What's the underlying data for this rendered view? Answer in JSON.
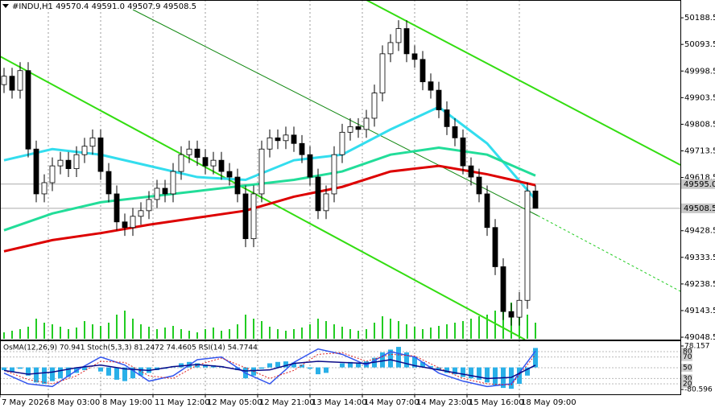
{
  "chart_data": [
    {
      "type": "candlestick",
      "title": "#INDU,H1  49570.4 49591.0 49507.9 49508.5",
      "xlim": [
        -0.5,
        84
      ],
      "ylim": [
        49040,
        50252
      ],
      "yticks": [
        50188.5,
        50093.5,
        49998.5,
        49903.5,
        49808.5,
        49713.5,
        49618.5,
        49428.5,
        49333.5,
        49238.5,
        49143.5,
        49048.5
      ],
      "price_lines": [
        {
          "value": 49595,
          "label": "49595.0"
        },
        49508.5
      ],
      "xticks": [
        {
          "value": -0.5,
          "label": "7 May 2026"
        },
        {
          "value": 5.5,
          "label": "8 May 03:00"
        },
        {
          "value": 12,
          "label": "8 May 19:00"
        },
        {
          "value": 18.5,
          "label": "11 May 12:00"
        },
        {
          "value": 25,
          "label": "12 May 05:00"
        },
        {
          "value": 31.5,
          "label": "12 May 21:00"
        },
        {
          "value": 38,
          "label": "13 May 14:00"
        },
        {
          "value": 44.5,
          "label": "14 May 07:00"
        },
        {
          "value": 51,
          "label": "14 May 23:00"
        },
        {
          "value": 57.5,
          "label": "15 May 16:00"
        },
        {
          "value": 64,
          "label": "18 May 09:00"
        }
      ],
      "grid": "x",
      "up_color": "#ffffff",
      "down_color": "#000000",
      "open": [
        49950,
        49980,
        49930,
        50000,
        49720,
        49560,
        49600,
        49660,
        49680,
        49650,
        49700,
        49730,
        49760,
        49640,
        49560,
        49460,
        49440,
        49480,
        49500,
        49540,
        49580,
        49560,
        49640,
        49700,
        49720,
        49690,
        49660,
        49680,
        49640,
        49620,
        49560,
        49400,
        49560,
        49720,
        49760,
        49750,
        49770,
        49740,
        49700,
        49620,
        49500,
        49560,
        49700,
        49780,
        49800,
        49790,
        49830,
        49920,
        50060,
        50100,
        50150,
        50060,
        50040,
        49960,
        49930,
        49860,
        49800,
        49760,
        49660,
        49620,
        49560,
        49440,
        49300,
        49140,
        49120,
        49180,
        49570.4
      ],
      "high": [
        50010,
        50010,
        50030,
        50030,
        49750,
        49630,
        49690,
        49710,
        49710,
        49730,
        49760,
        49790,
        49790,
        49670,
        49590,
        49490,
        49510,
        49530,
        49570,
        49610,
        49610,
        49670,
        49730,
        49750,
        49750,
        49720,
        49710,
        49710,
        49670,
        49650,
        49590,
        49590,
        49750,
        49790,
        49790,
        49800,
        49800,
        49770,
        49730,
        49650,
        49590,
        49730,
        49810,
        49830,
        49830,
        49860,
        49950,
        50090,
        50130,
        50180,
        50180,
        50090,
        50070,
        49990,
        49960,
        49890,
        49830,
        49790,
        49690,
        49650,
        49590,
        49470,
        49330,
        49170,
        49210,
        49600,
        49591.0
      ],
      "low": [
        49920,
        49900,
        49900,
        49690,
        49530,
        49530,
        49570,
        49630,
        49620,
        49620,
        49670,
        49700,
        49610,
        49530,
        49430,
        49410,
        49410,
        49450,
        49470,
        49510,
        49530,
        49530,
        49610,
        49670,
        49660,
        49630,
        49630,
        49610,
        49590,
        49530,
        49370,
        49370,
        49530,
        49690,
        49720,
        49720,
        49710,
        49670,
        49590,
        49470,
        49470,
        49530,
        49670,
        49750,
        49760,
        49760,
        49800,
        49890,
        50030,
        50070,
        50030,
        50010,
        49930,
        49900,
        49830,
        49770,
        49730,
        49630,
        49590,
        49530,
        49410,
        49270,
        49110,
        49090,
        49090,
        49150,
        49507.9
      ],
      "close": [
        49980,
        49930,
        50000,
        49720,
        49560,
        49600,
        49660,
        49680,
        49650,
        49700,
        49730,
        49760,
        49640,
        49560,
        49460,
        49440,
        49480,
        49500,
        49540,
        49580,
        49560,
        49640,
        49700,
        49720,
        49690,
        49660,
        49680,
        49640,
        49620,
        49560,
        49400,
        49560,
        49720,
        49760,
        49750,
        49770,
        49740,
        49700,
        49620,
        49500,
        49560,
        49700,
        49780,
        49800,
        49790,
        49830,
        49920,
        50060,
        50100,
        50150,
        50060,
        50040,
        49960,
        49930,
        49860,
        49800,
        49760,
        49660,
        49620,
        49560,
        49440,
        49300,
        49140,
        49120,
        49180,
        49570.4,
        49508.5
      ],
      "volumes": [
        8,
        10,
        12,
        15,
        25,
        20,
        18,
        15,
        12,
        14,
        22,
        18,
        16,
        20,
        30,
        35,
        25,
        18,
        15,
        12,
        14,
        16,
        12,
        10,
        8,
        12,
        14,
        10,
        12,
        18,
        30,
        25,
        22,
        15,
        12,
        10,
        12,
        14,
        18,
        25,
        22,
        18,
        15,
        12,
        10,
        12,
        20,
        28,
        25,
        22,
        18,
        15,
        12,
        14,
        16,
        18,
        20,
        22,
        25,
        28,
        30,
        35,
        40,
        45,
        38,
        30,
        20
      ],
      "volume_color": "#22cc22",
      "overlays": [
        {
          "color": "#33ddee",
          "x": [
            0,
            6,
            12,
            18,
            24,
            30,
            36,
            42,
            48,
            54,
            60,
            66
          ],
          "values": [
            49680,
            49720,
            49700,
            49660,
            49620,
            49610,
            49680,
            49700,
            49790,
            49870,
            49740,
            49540
          ]
        },
        {
          "color": "#22dd99",
          "x": [
            0,
            6,
            12,
            18,
            24,
            30,
            36,
            42,
            48,
            54,
            60,
            66
          ],
          "values": [
            49430,
            49490,
            49530,
            49550,
            49570,
            49590,
            49610,
            49640,
            49700,
            49725,
            49700,
            49625
          ]
        },
        {
          "color": "#dd0000",
          "x": [
            0,
            6,
            12,
            18,
            24,
            30,
            36,
            42,
            48,
            54,
            60,
            66
          ],
          "values": [
            49355,
            49395,
            49420,
            49450,
            49475,
            49500,
            49550,
            49585,
            49640,
            49660,
            49630,
            49591
          ]
        }
      ]
    },
    {
      "type": "oscillator",
      "title": "OsMA(12,26,9) 70.941 Stoch(5,3,3) 81.2472 74.4605 RSI(14) 54.7744",
      "xlim": [
        -0.5,
        84
      ],
      "ylim": [
        -98.2,
        98.7
      ],
      "yticks": [
        78.157,
        -80.596
      ],
      "y2lim": [
        0.5,
        101
      ],
      "y2ticks": [
        80,
        70,
        50,
        30,
        20
      ],
      "histogram": {
        "color": "#2ab0e8",
        "values": [
          -10,
          -15,
          -5,
          -30,
          -55,
          -60,
          -50,
          -40,
          -35,
          -20,
          -10,
          0,
          -15,
          -30,
          -45,
          -50,
          -40,
          -30,
          -20,
          -10,
          -5,
          5,
          15,
          20,
          15,
          10,
          8,
          5,
          0,
          -10,
          -40,
          -30,
          -5,
          15,
          20,
          22,
          18,
          10,
          -5,
          -25,
          -20,
          0,
          15,
          20,
          18,
          22,
          35,
          55,
          65,
          75,
          55,
          40,
          20,
          5,
          -10,
          -20,
          -25,
          -35,
          -40,
          -45,
          -55,
          -65,
          -75,
          -78,
          -60,
          -30,
          70.941
        ]
      },
      "lines": [
        {
          "color": "#3355ee",
          "axis": "y2",
          "x": [
            0,
            3,
            6,
            9,
            12,
            15,
            18,
            21,
            24,
            27,
            30,
            33,
            36,
            39,
            42,
            45,
            48,
            51,
            54,
            57,
            60,
            63,
            66
          ],
          "values": [
            40,
            20,
            15,
            45,
            70,
            55,
            25,
            35,
            65,
            70,
            40,
            20,
            60,
            85,
            75,
            55,
            80,
            70,
            40,
            25,
            15,
            20,
            81.2472
          ]
        },
        {
          "color": "#dd2222",
          "axis": "y2",
          "dash": true,
          "x": [
            0,
            3,
            6,
            9,
            12,
            15,
            18,
            21,
            24,
            27,
            30,
            33,
            36,
            39,
            42,
            45,
            48,
            51,
            54,
            57,
            60,
            63,
            66
          ],
          "values": [
            45,
            28,
            20,
            35,
            62,
            60,
            35,
            30,
            55,
            68,
            50,
            30,
            45,
            75,
            78,
            62,
            75,
            72,
            50,
            30,
            20,
            18,
            74.4605
          ]
        },
        {
          "color": "#0a0a88",
          "axis": "y2",
          "x": [
            0,
            3,
            6,
            9,
            12,
            15,
            18,
            21,
            24,
            27,
            30,
            33,
            36,
            39,
            42,
            45,
            48,
            51,
            54,
            57,
            60,
            63,
            66
          ],
          "values": [
            45,
            38,
            42,
            50,
            55,
            48,
            45,
            52,
            56,
            52,
            44,
            46,
            58,
            62,
            60,
            58,
            65,
            54,
            46,
            38,
            30,
            32,
            54.7744
          ]
        }
      ]
    }
  ]
}
